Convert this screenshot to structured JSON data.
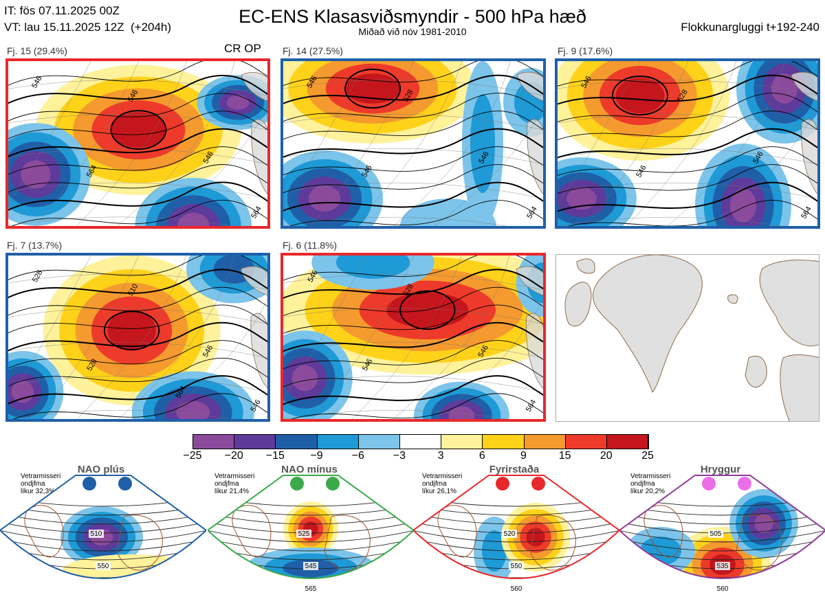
{
  "header": {
    "it_line": "IT: fös 07.11.2025 00Z",
    "vt_line": "VT: lau 15.11.2025 12Z  (+204h)",
    "title": "EC-ENS Klasasviðsmyndir - 500 hPa hæð",
    "subtitle": "Miðað við nóv 1981-2010",
    "window": "Flokkunargluggi t+192-240"
  },
  "clusters": [
    {
      "label": "Fj. 15 (29.4%)",
      "tag": "CR OP",
      "border": "#e8282b",
      "contours": [
        "546",
        "546",
        "564",
        "546",
        "564"
      ]
    },
    {
      "label": "Fj. 14 (27.5%)",
      "tag": "",
      "border": "#1f5fa8",
      "contours": [
        "546",
        "528",
        "546",
        "546",
        "564"
      ]
    },
    {
      "label": "Fj. 9 (17.6%)",
      "tag": "",
      "border": "#1f5fa8",
      "contours": [
        "546",
        "528",
        "546",
        "546",
        "564"
      ]
    },
    {
      "label": "Fj. 7 (13.7%)",
      "tag": "",
      "border": "#1f5fa8",
      "contours": [
        "528",
        "510",
        "528",
        "546",
        "546",
        "564"
      ]
    },
    {
      "label": "Fj. 6 (11.8%)",
      "tag": "",
      "border": "#e8282b",
      "contours": [
        "546",
        "528",
        "546",
        "546",
        "564"
      ]
    }
  ],
  "legend": {
    "ticks": [
      "−25",
      "−20",
      "−15",
      "−9",
      "−6",
      "−3",
      "3",
      "6",
      "9",
      "15",
      "20",
      "25"
    ],
    "colors": [
      "#8b4a9c",
      "#5e3a9a",
      "#1f5fa8",
      "#1e9ad6",
      "#7cc4ea",
      "#ffffff",
      "#fff29a",
      "#ffd21a",
      "#f59a2e",
      "#ee3a2a",
      "#c4161c"
    ]
  },
  "regimes": [
    {
      "title": "NAO plús",
      "note": "Vetrarmisseri\nondjfma\nlíkur 32,3%",
      "border": "#1f5fa8",
      "dot_color": "#1f5fa8",
      "contours": [
        "510",
        "550"
      ]
    },
    {
      "title": "NAO mínus",
      "note": "Vetrarmisseri\nondjfma\nlíkur 21,4%",
      "border": "#3aaa48",
      "dot_color": "#3aaa48",
      "contours": [
        "525",
        "545",
        "565"
      ]
    },
    {
      "title": "Fyrirstaða",
      "note": "Vetrarmisseri\nondjfma\nlíkur 26,1%",
      "border": "#e8282b",
      "dot_color": "#e8282b",
      "contours": [
        "520",
        "550",
        "560"
      ]
    },
    {
      "title": "Hryggur",
      "note": "Vetrarmisseri\nondjfma\nlíkur 20,2%",
      "border": "#8e3a9a",
      "dot_color": "#ea6ee8",
      "contours": [
        "505",
        "535",
        "560"
      ]
    }
  ]
}
